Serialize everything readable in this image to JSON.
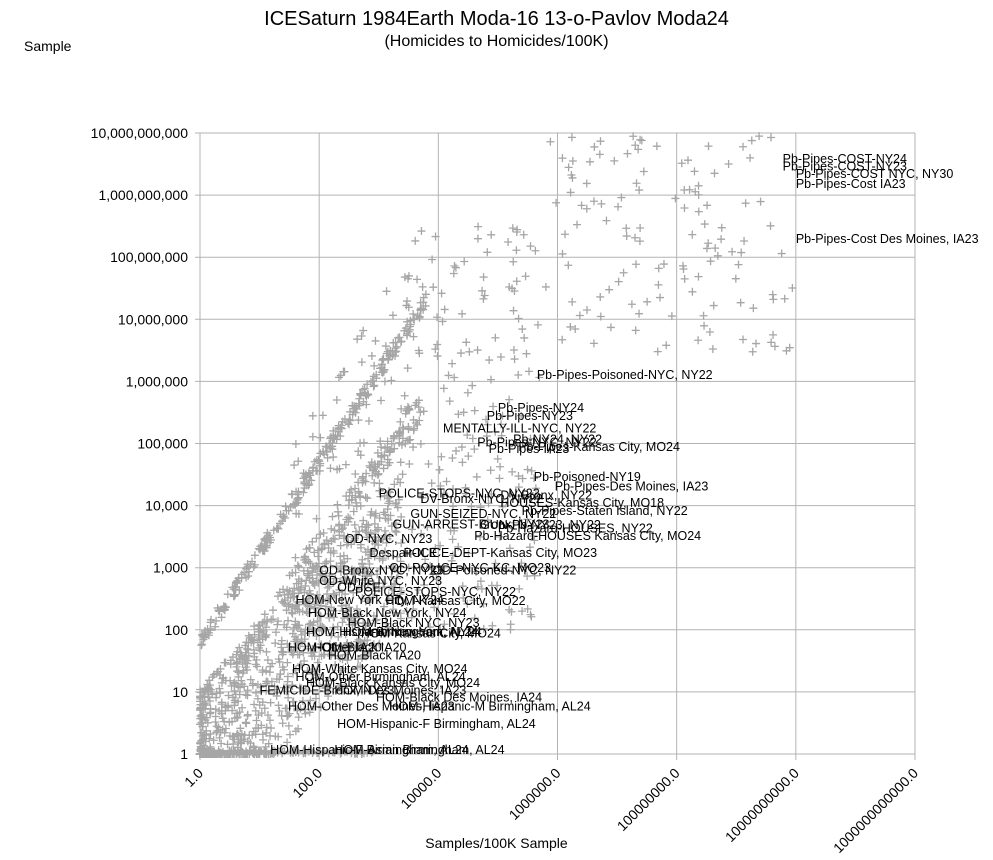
{
  "header": {
    "title": "ICESaturn 1984Earth Moda-16 13-o-Pavlov Moda24",
    "subtitle": "(Homicides to Homicides/100K)",
    "corner_label": "Sample"
  },
  "chart_data": {
    "type": "scatter",
    "title": "ICESaturn 1984Earth Moda-16 13-o-Pavlov Moda24",
    "subtitle": "(Homicides to Homicides/100K)",
    "xlabel": "Samples/100K Sample",
    "ylabel": "Sample",
    "x_scale": "log",
    "y_scale": "log",
    "xlim": [
      1,
      1000000000000
    ],
    "ylim": [
      1,
      10000000000
    ],
    "grid": true,
    "marker": "plus",
    "colors": {
      "marker": "#a6a6a6",
      "grid": "#b3b3b3",
      "text": "#000000"
    },
    "x_ticks": [
      {
        "value": 1,
        "label": "1.0"
      },
      {
        "value": 100,
        "label": "100.0"
      },
      {
        "value": 10000,
        "label": "10000.0"
      },
      {
        "value": 1000000,
        "label": "1000000.0"
      },
      {
        "value": 100000000,
        "label": "100000000.0"
      },
      {
        "value": 10000000000,
        "label": "10000000000.0"
      },
      {
        "value": 1000000000000,
        "label": "1000000000000.0"
      }
    ],
    "y_ticks": [
      {
        "value": 1,
        "label": "1"
      },
      {
        "value": 10,
        "label": "10"
      },
      {
        "value": 100,
        "label": "100"
      },
      {
        "value": 1000,
        "label": "1,000"
      },
      {
        "value": 10000,
        "label": "10,000"
      },
      {
        "value": 100000,
        "label": "100,000"
      },
      {
        "value": 1000000,
        "label": "1,000,000"
      },
      {
        "value": 10000000,
        "label": "10,000,000"
      },
      {
        "value": 100000000,
        "label": "100,000,000"
      },
      {
        "value": 1000000000,
        "label": "1,000,000,000"
      },
      {
        "value": 10000000000,
        "label": "10,000,000,000"
      }
    ],
    "labeled_points": [
      {
        "x": 6000000000,
        "y": 3300000000,
        "label": "Pb-Pipes-COST-NY24"
      },
      {
        "x": 6000000000,
        "y": 2500000000,
        "label": "Pb-Pipes-COST-NY23"
      },
      {
        "x": 10000000000,
        "y": 1900000000,
        "label": "Pb-Pipes-COST NYC, NY30"
      },
      {
        "x": 10000000000,
        "y": 1300000000,
        "label": "Pb-Pipes-Cost IA23"
      },
      {
        "x": 10000000000,
        "y": 170000000,
        "label": "Pb-Pipes-Cost Des Moines, IA23"
      },
      {
        "x": 450000,
        "y": 1100000,
        "label": "Pb-Pipes-Poisoned-NYC, NY22"
      },
      {
        "x": 100000,
        "y": 320000,
        "label": "Pb-Pipes-NY24"
      },
      {
        "x": 65000,
        "y": 240000,
        "label": "Pb-Pipes-NY23"
      },
      {
        "x": 12000,
        "y": 150000,
        "label": "MENTALLY-ILL-NYC, NY22"
      },
      {
        "x": 180000,
        "y": 100000,
        "label": "Pb-NY24, NY22"
      },
      {
        "x": 45000,
        "y": 90000,
        "label": "Pb-Pipes-NYC, NY22"
      },
      {
        "x": 220000,
        "y": 76000,
        "label": "Pb-Pipes-Kansas City, MO24"
      },
      {
        "x": 70000,
        "y": 70000,
        "label": "Pb-Pipes-IA23"
      },
      {
        "x": 400000,
        "y": 25000,
        "label": "Pb-Poisoned-NY19"
      },
      {
        "x": 900000,
        "y": 17500,
        "label": "Pb-Pipes-Des Moines, IA23"
      },
      {
        "x": 1000,
        "y": 13500,
        "label": "POLICE-STOPS-NYC, NY22"
      },
      {
        "x": 110000,
        "y": 12500,
        "label": "DV-Bronx, NY22"
      },
      {
        "x": 5000,
        "y": 11000,
        "label": "DV-Bronx-NYC, NY22"
      },
      {
        "x": 110000,
        "y": 9500,
        "label": "HOUSES-Kansas City, MO18"
      },
      {
        "x": 250000,
        "y": 7000,
        "label": "Pb-Pipes-Staten Island, NY22"
      },
      {
        "x": 3400,
        "y": 6300,
        "label": "GUN-SEIZED-NYC, NY22"
      },
      {
        "x": 1700,
        "y": 4300,
        "label": "GUN-ARREST-Bronx, NY23"
      },
      {
        "x": 50000,
        "y": 4200,
        "label": "GUN-Pb-NY23, NY22"
      },
      {
        "x": 100000,
        "y": 3700,
        "label": "Pb-Hazard-HOUSES, NY22"
      },
      {
        "x": 40000,
        "y": 2800,
        "label": "Pb-Hazard-HOUSES Kansas City, MO24"
      },
      {
        "x": 270,
        "y": 2500,
        "label": "OD-NYC, NY23"
      },
      {
        "x": 700,
        "y": 1500,
        "label": "Despair-ICE"
      },
      {
        "x": 2600,
        "y": 1500,
        "label": "POLICE-DEPT-Kansas City, MO23"
      },
      {
        "x": 1500,
        "y": 860,
        "label": "OD-POLICE-NYC-KC, MO23"
      },
      {
        "x": 100,
        "y": 780,
        "label": "OD-Bronx-NYC, NY23"
      },
      {
        "x": 8000,
        "y": 780,
        "label": "OD-Poisoned-NYC, NY22"
      },
      {
        "x": 100,
        "y": 530,
        "label": "OD-White NYC, NY23"
      },
      {
        "x": 200,
        "y": 410,
        "label": "OD-ICE"
      },
      {
        "x": 400,
        "y": 350,
        "label": "POLICE-STOPS-NYC, NY22"
      },
      {
        "x": 40,
        "y": 260,
        "label": "HOM-New York City, NY24"
      },
      {
        "x": 1300,
        "y": 250,
        "label": "HOM-Kansas City, MO22"
      },
      {
        "x": 65,
        "y": 160,
        "label": "HOM-Black New York, NY24"
      },
      {
        "x": 300,
        "y": 110,
        "label": "HOM-Black NYC, NY23"
      },
      {
        "x": 60,
        "y": 80,
        "label": "HOM-Hispanic New York, NY24"
      },
      {
        "x": 250,
        "y": 80,
        "label": "HOM-Birmingham, AL24"
      },
      {
        "x": 500,
        "y": 75,
        "label": "HOM-Kansas City, MO24"
      },
      {
        "x": 30,
        "y": 45,
        "label": "HOM-Other IA20"
      },
      {
        "x": 80,
        "y": 45,
        "label": "HOM-Black IA20"
      },
      {
        "x": 140,
        "y": 33,
        "label": "HOM-Black IA20"
      },
      {
        "x": 35,
        "y": 20,
        "label": "HOM-White Kansas City, MO24"
      },
      {
        "x": 40,
        "y": 15,
        "label": "HOM-Other Birmingham, AL24"
      },
      {
        "x": 60,
        "y": 12,
        "label": "HOM-Black Kansas City, MO24"
      },
      {
        "x": 10,
        "y": 9,
        "label": "FEMICIDE-Bronx, NY23"
      },
      {
        "x": 180,
        "y": 9,
        "label": "HOM-Des Moines, IA23"
      },
      {
        "x": 30,
        "y": 5,
        "label": "HOM-Other Des Moines, IA23"
      },
      {
        "x": 900,
        "y": 7,
        "label": "HOM-Black Des Moines, IA24"
      },
      {
        "x": 1500,
        "y": 5,
        "label": "HOM-Hispanic-M Birmingham, AL24"
      },
      {
        "x": 200,
        "y": 2.6,
        "label": "HOM-Hispanic-F Birmingham, AL24"
      },
      {
        "x": 15,
        "y": 1,
        "label": "HOM-Hispanic-F Birmingham, AL24"
      },
      {
        "x": 180,
        "y": 1,
        "label": "HOM-Asian Birmingham, AL24"
      }
    ]
  }
}
